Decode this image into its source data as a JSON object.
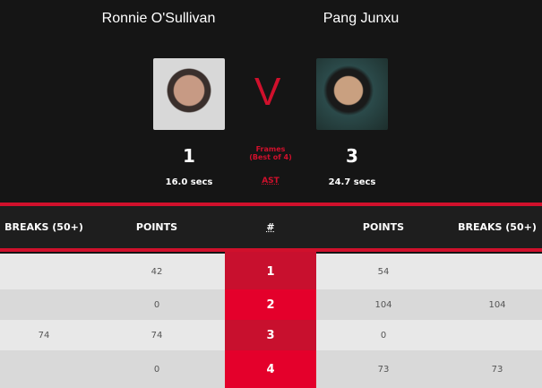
{
  "player1": {
    "name": "Ronnie O'Sullivan",
    "score": "1",
    "avg_shot_time": "16.0 secs"
  },
  "player2": {
    "name": "Pang Junxu",
    "score": "3",
    "avg_shot_time": "24.7 secs"
  },
  "versus": "V",
  "frames_label": "Frames",
  "best_of": "(Best of 4)",
  "ast_label": "AST",
  "table": {
    "headers": [
      "BREAKS (50+)",
      "POINTS",
      "#",
      "POINTS",
      "BREAKS (50+)"
    ],
    "rows": [
      {
        "p1_breaks": "",
        "p1_points": "42",
        "frame": "1",
        "p2_points": "54",
        "p2_breaks": ""
      },
      {
        "p1_breaks": "",
        "p1_points": "0",
        "frame": "2",
        "p2_points": "104",
        "p2_breaks": "104"
      },
      {
        "p1_breaks": "74",
        "p1_points": "74",
        "frame": "3",
        "p2_points": "0",
        "p2_breaks": ""
      },
      {
        "p1_breaks": "",
        "p1_points": "0",
        "frame": "4",
        "p2_points": "73",
        "p2_breaks": "73"
      }
    ]
  },
  "colors": {
    "accent": "#d0102c",
    "accent_alt": "#e4002b",
    "row_light": "#e8e8e8",
    "row_dark": "#d9d9d9"
  }
}
